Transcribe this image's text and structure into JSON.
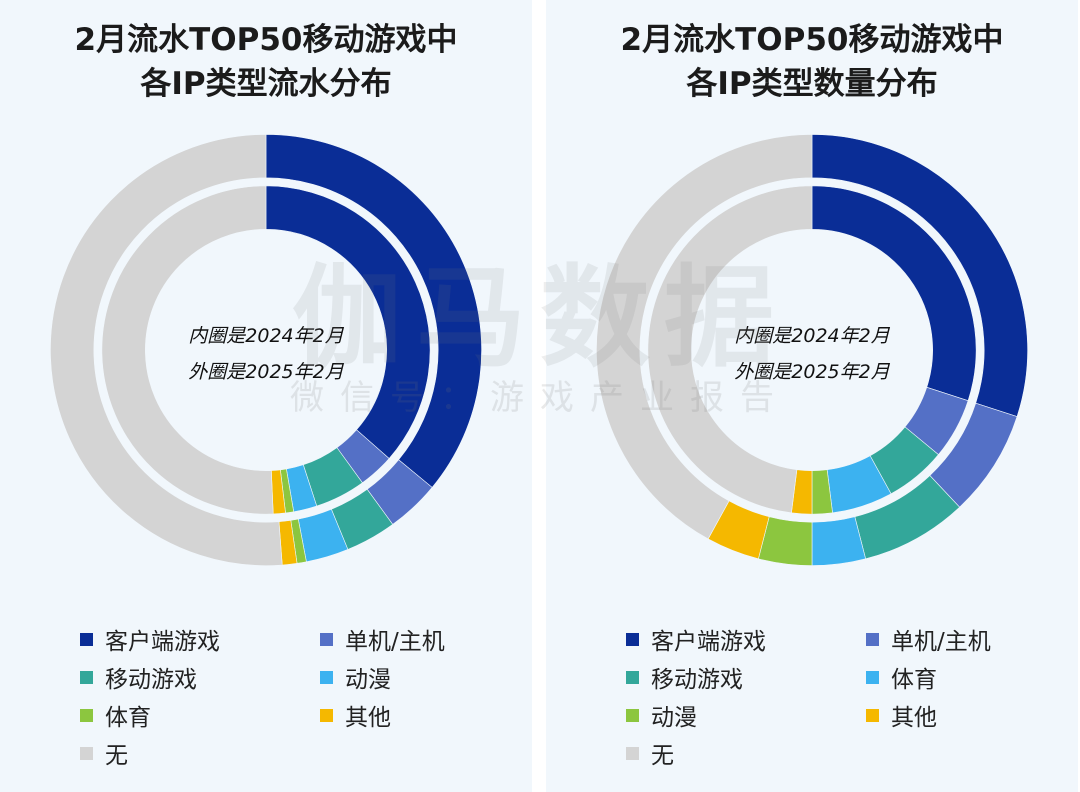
{
  "watermark": {
    "main": "伽马数据",
    "sub": "微信号：游戏产业报告"
  },
  "chart_data": [
    {
      "type": "donut",
      "title_line1": "2月流水TOP50移动游戏中",
      "title_line2": "各IP类型流水分布",
      "center_note_inner": "内圈是2024年2月",
      "center_note_outer": "外圈是2025年2月",
      "categories": [
        "客户端游戏",
        "单机/主机",
        "移动游戏",
        "动漫",
        "体育",
        "其他",
        "无"
      ],
      "colors": [
        "#0a2d96",
        "#5470c6",
        "#33a79a",
        "#3cb2f0",
        "#8cc63f",
        "#f5b800",
        "#d4d4d4"
      ],
      "series": [
        {
          "name": "内圈是2024年2月",
          "ring": "inner",
          "values": [
            36.5,
            3.5,
            5.0,
            2.3,
            0.8,
            1.2,
            50.7
          ]
        },
        {
          "name": "外圈是2025年2月",
          "ring": "outer",
          "values": [
            36.0,
            4.0,
            3.8,
            3.2,
            0.7,
            1.1,
            51.2
          ]
        }
      ],
      "legend": [
        {
          "label": "客户端游戏",
          "color": "#0a2d96"
        },
        {
          "label": "单机/主机",
          "color": "#5470c6"
        },
        {
          "label": "移动游戏",
          "color": "#33a79a"
        },
        {
          "label": "动漫",
          "color": "#3cb2f0"
        },
        {
          "label": "体育",
          "color": "#8cc63f"
        },
        {
          "label": "其他",
          "color": "#f5b800"
        },
        {
          "label": "无",
          "color": "#d4d4d4"
        }
      ]
    },
    {
      "type": "donut",
      "title_line1": "2月流水TOP50移动游戏中",
      "title_line2": "各IP类型数量分布",
      "center_note_inner": "内圈是2024年2月",
      "center_note_outer": "外圈是2025年2月",
      "categories": [
        "客户端游戏",
        "单机/主机",
        "移动游戏",
        "体育",
        "动漫",
        "其他",
        "无"
      ],
      "colors": [
        "#0a2d96",
        "#5470c6",
        "#33a79a",
        "#3cb2f0",
        "#8cc63f",
        "#f5b800",
        "#d4d4d4"
      ],
      "series": [
        {
          "name": "内圈是2024年2月",
          "ring": "inner",
          "values": [
            30,
            6,
            6,
            6,
            2,
            2,
            48
          ]
        },
        {
          "name": "外圈是2025年2月",
          "ring": "outer",
          "values": [
            30,
            8,
            8,
            4,
            4,
            4,
            42
          ]
        }
      ],
      "legend": [
        {
          "label": "客户端游戏",
          "color": "#0a2d96"
        },
        {
          "label": "单机/主机",
          "color": "#5470c6"
        },
        {
          "label": "移动游戏",
          "color": "#33a79a"
        },
        {
          "label": "体育",
          "color": "#3cb2f0"
        },
        {
          "label": "动漫",
          "color": "#8cc63f"
        },
        {
          "label": "其他",
          "color": "#f5b800"
        },
        {
          "label": "无",
          "color": "#d4d4d4"
        }
      ]
    }
  ]
}
